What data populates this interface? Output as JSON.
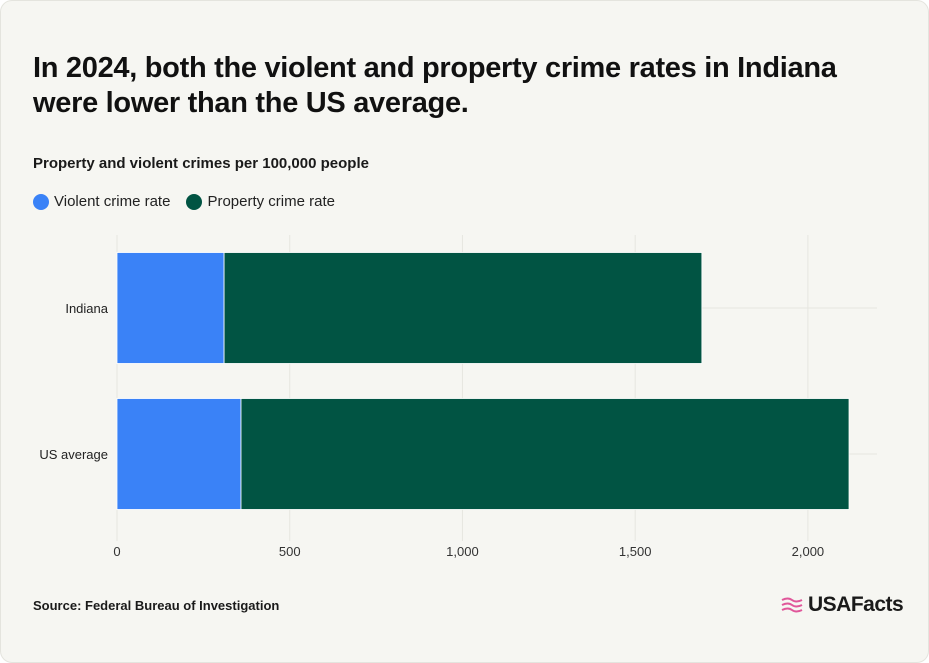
{
  "title": "In 2024, both the violent and property crime rates in Indiana were lower than the US average.",
  "subtitle": "Property and violent crimes per 100,000 people",
  "source": "Source: Federal Bureau of Investigation",
  "logo_text": "USAFacts",
  "colors": {
    "violent": "#3a82f7",
    "property": "#015443",
    "logo_accent": "#e0569a"
  },
  "chart_data": {
    "type": "bar",
    "orientation": "horizontal",
    "stacked": true,
    "categories": [
      "Indiana",
      "US average"
    ],
    "series": [
      {
        "name": "Violent crime rate",
        "values": [
          310,
          359
        ]
      },
      {
        "name": "Property crime rate",
        "values": [
          1383,
          1760
        ]
      }
    ],
    "xlim": [
      0,
      2200
    ],
    "xticks": [
      0,
      500,
      1000,
      1500,
      2000
    ],
    "xtick_labels": [
      "0",
      "500",
      "1,000",
      "1,500",
      "2,000"
    ],
    "grid": true,
    "legend": "top-left"
  }
}
